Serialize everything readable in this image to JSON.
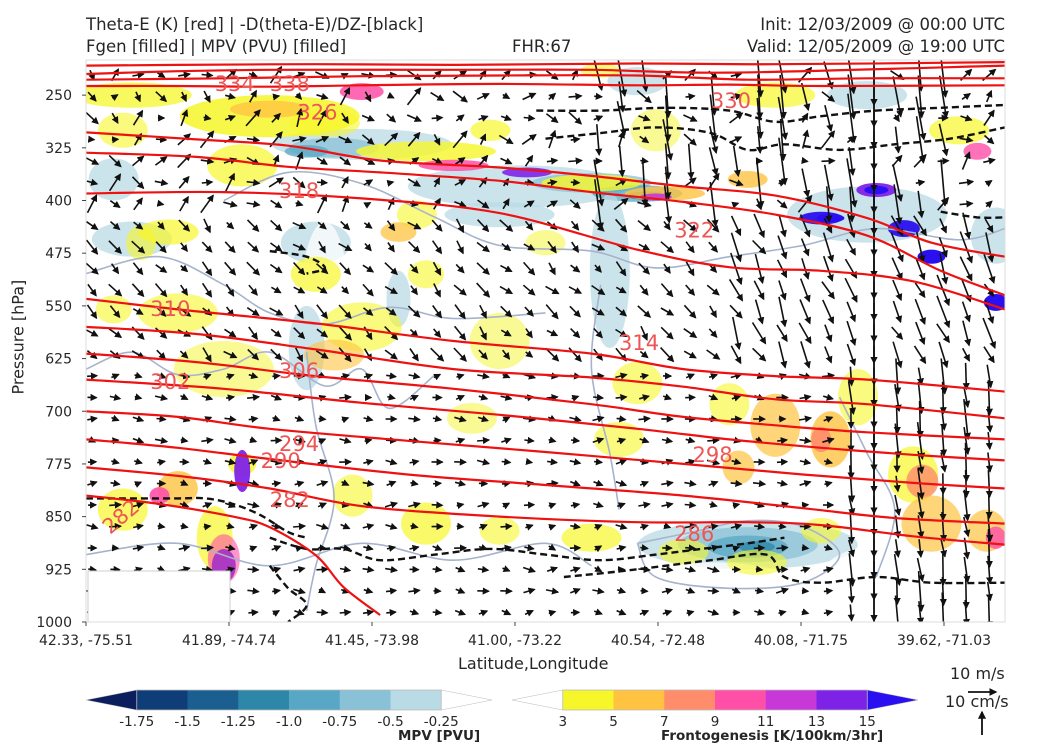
{
  "titles": {
    "line1_left": "Theta-E (K) [red] | -D(theta-E)/DZ-[black]",
    "line2_left": "Fgen [filled] | MPV (PVU) [filled]",
    "fhr": "FHR:67",
    "init": "Init: 12/03/2009 @ 00:00 UTC",
    "valid": "Valid: 12/05/2009 @ 19:00 UTC"
  },
  "axes": {
    "ylabel": "Pressure [hPa]",
    "xlabel": "Latitude,Longitude",
    "yticks": [
      "250",
      "325",
      "400",
      "475",
      "550",
      "625",
      "700",
      "775",
      "850",
      "925",
      "1000"
    ],
    "xticks": [
      "42.33, -75.51",
      "41.89, -74.74",
      "41.45, -73.98",
      "41.00, -73.22",
      "40.54, -72.48",
      "40.08, -71.75",
      "39.62, -71.03"
    ]
  },
  "chart_data": {
    "type": "cross-section",
    "y_axis": {
      "quantity": "Pressure",
      "unit": "hPa",
      "inverted": true,
      "range": [
        1000,
        200
      ],
      "ticks": [
        250,
        325,
        400,
        475,
        550,
        625,
        700,
        775,
        850,
        925,
        1000
      ]
    },
    "x_axis": {
      "quantity": "Latitude,Longitude",
      "tick_labels": [
        "42.33, -75.51",
        "41.89, -74.74",
        "41.45, -73.98",
        "41.00, -73.22",
        "40.54, -72.48",
        "40.08, -71.75",
        "39.62, -71.03"
      ]
    },
    "theta_e_contours": {
      "color": "#ee1111",
      "labeled_values": [
        282,
        286,
        290,
        294,
        298,
        302,
        306,
        310,
        314,
        318,
        322,
        326,
        330,
        334,
        338
      ],
      "lines": [
        {
          "value": 338,
          "label": "338",
          "points": [
            [
              0,
              208
            ],
            [
              0.1,
              207
            ],
            [
              0.25,
              206
            ],
            [
              0.4,
              207
            ],
            [
              0.6,
              205
            ],
            [
              0.75,
              206
            ],
            [
              1,
              203
            ]
          ]
        },
        {
          "value": 334,
          "label": "334",
          "points": [
            [
              0,
              220
            ],
            [
              0.1,
              216
            ],
            [
              0.2,
              214
            ],
            [
              0.4,
              214
            ],
            [
              0.55,
              214
            ],
            [
              0.7,
              218
            ],
            [
              1,
              208
            ]
          ]
        },
        {
          "value": 330,
          "label": "330",
          "points": [
            [
              0,
              228
            ],
            [
              0.15,
              226
            ],
            [
              0.3,
              223
            ],
            [
              0.45,
              222
            ],
            [
              0.6,
              222
            ],
            [
              0.72,
              228
            ],
            [
              0.85,
              226
            ],
            [
              1,
              226
            ]
          ]
        },
        {
          "value": 326,
          "label": "326",
          "points": [
            [
              0,
              237
            ],
            [
              0.1,
              237
            ],
            [
              0.2,
              238
            ],
            [
              0.3,
              236
            ],
            [
              0.45,
              234
            ],
            [
              0.6,
              236
            ],
            [
              0.7,
              235
            ],
            [
              0.8,
              237
            ],
            [
              1,
              236
            ]
          ]
        },
        {
          "value": 322,
          "label": "322",
          "points": [
            [
              0,
              303
            ],
            [
              0.12,
              313
            ],
            [
              0.22,
              322
            ],
            [
              0.32,
              343
            ],
            [
              0.45,
              353
            ],
            [
              0.55,
              365
            ],
            [
              0.65,
              380
            ],
            [
              0.75,
              393
            ],
            [
              0.85,
              425
            ],
            [
              0.92,
              460
            ],
            [
              1,
              480
            ]
          ]
        },
        {
          "value": 318,
          "label": "318",
          "points": [
            [
              0,
              332
            ],
            [
              0.12,
              338
            ],
            [
              0.22,
              352
            ],
            [
              0.32,
              360
            ],
            [
              0.45,
              372
            ],
            [
              0.55,
              388
            ],
            [
              0.65,
              402
            ],
            [
              0.75,
              420
            ],
            [
              0.85,
              450
            ],
            [
              0.93,
              500
            ],
            [
              1,
              535
            ]
          ]
        },
        {
          "value": 314,
          "label": "314",
          "points": [
            [
              0,
              390
            ],
            [
              0.15,
              388
            ],
            [
              0.3,
              397
            ],
            [
              0.45,
              418
            ],
            [
              0.6,
              470
            ],
            [
              0.7,
              495
            ],
            [
              0.8,
              500
            ],
            [
              0.9,
              515
            ],
            [
              1,
              555
            ]
          ]
        },
        {
          "value": 310,
          "label": "310",
          "points": [
            [
              0,
              540
            ],
            [
              0.1,
              555
            ],
            [
              0.25,
              575
            ],
            [
              0.4,
              600
            ],
            [
              0.55,
              618
            ],
            [
              0.65,
              640
            ],
            [
              0.75,
              650
            ],
            [
              0.85,
              655
            ],
            [
              1,
              672
            ]
          ]
        },
        {
          "value": 306,
          "label": "306",
          "points": [
            [
              0,
              580
            ],
            [
              0.12,
              590
            ],
            [
              0.25,
              612
            ],
            [
              0.4,
              640
            ],
            [
              0.55,
              652
            ],
            [
              0.65,
              665
            ],
            [
              0.75,
              683
            ],
            [
              0.85,
              690
            ],
            [
              1,
              710
            ]
          ]
        },
        {
          "value": 302,
          "label": "302",
          "points": [
            [
              0,
              618
            ],
            [
              0.12,
              630
            ],
            [
              0.25,
              650
            ],
            [
              0.4,
              668
            ],
            [
              0.55,
              690
            ],
            [
              0.65,
              708
            ],
            [
              0.75,
              720
            ],
            [
              0.85,
              730
            ],
            [
              1,
              740
            ]
          ]
        },
        {
          "value": 298,
          "label": "298",
          "points": [
            [
              0,
              655
            ],
            [
              0.15,
              668
            ],
            [
              0.3,
              688
            ],
            [
              0.45,
              705
            ],
            [
              0.6,
              725
            ],
            [
              0.7,
              740
            ],
            [
              0.8,
              752
            ],
            [
              0.9,
              762
            ],
            [
              1,
              770
            ]
          ]
        },
        {
          "value": 294,
          "label": "294",
          "points": [
            [
              0,
              700
            ],
            [
              0.1,
              708
            ],
            [
              0.2,
              725
            ],
            [
              0.35,
              742
            ],
            [
              0.5,
              758
            ],
            [
              0.65,
              775
            ],
            [
              0.78,
              790
            ],
            [
              0.9,
              802
            ],
            [
              1,
              810
            ]
          ]
        },
        {
          "value": 290,
          "label": "290",
          "points": [
            [
              0,
              740
            ],
            [
              0.1,
              752
            ],
            [
              0.2,
              768
            ],
            [
              0.35,
              790
            ],
            [
              0.5,
              805
            ],
            [
              0.65,
              820
            ],
            [
              0.78,
              838
            ],
            [
              0.88,
              852
            ],
            [
              1,
              860
            ]
          ]
        },
        {
          "value": 286,
          "label": "286",
          "points": [
            [
              0,
              780
            ],
            [
              0.1,
              792
            ],
            [
              0.2,
              810
            ],
            [
              0.3,
              835
            ],
            [
              0.45,
              850
            ],
            [
              0.6,
              858
            ],
            [
              0.72,
              858
            ],
            [
              0.8,
              862
            ],
            [
              0.9,
              878
            ],
            [
              1,
              890
            ]
          ]
        },
        {
          "value": 282,
          "label": "282",
          "points": [
            [
              0,
              820
            ],
            [
              0.08,
              832
            ],
            [
              0.16,
              850
            ],
            [
              0.2,
              865
            ],
            [
              0.25,
              905
            ],
            [
              0.28,
              950
            ],
            [
              0.32,
              990
            ]
          ]
        }
      ]
    },
    "stability_contours": {
      "color": "#111111",
      "style": "dashed",
      "description": "-D(theta-E)/DZ"
    },
    "mpv_fill": {
      "unit": "PVU",
      "label": "MPV [PVU]",
      "levels": [
        -1.75,
        -1.5,
        -1.25,
        -1.0,
        -0.75,
        -0.5,
        -0.25
      ],
      "colors": [
        "#0b1f5f",
        "#0f3d78",
        "#1a5f8f",
        "#2d87a8",
        "#58a7c4",
        "#89c1d6",
        "#b9dbe6",
        "#ffffff"
      ]
    },
    "frontogenesis_fill": {
      "unit": "K/100km/3hr",
      "label": "Frontogenesis [K/100km/3hr]",
      "levels": [
        3,
        5,
        7,
        9,
        11,
        13,
        15
      ],
      "colors": [
        "#ffffff",
        "#f6f62a",
        "#ffc341",
        "#ff8c6b",
        "#ff4fa7",
        "#c837d8",
        "#7f22e8",
        "#2a10f0"
      ]
    },
    "wind_vectors": {
      "color": "#111111",
      "reference": {
        "horizontal": "10 m/s",
        "vertical": "10 cm/s"
      }
    }
  },
  "colorbars": {
    "mpv_title": "MPV [PVU]",
    "mpv_ticks": [
      "-1.75",
      "-1.5",
      "-1.25",
      "-1.0",
      "-0.75",
      "-0.5",
      "-0.25"
    ],
    "fgen_title": "Frontogenesis [K/100km/3hr]",
    "fgen_ticks": [
      "3",
      "5",
      "7",
      "9",
      "11",
      "13",
      "15"
    ]
  },
  "reference_vectors": {
    "horizontal_label": "10 m/s",
    "vertical_label": "10 cm/s"
  }
}
